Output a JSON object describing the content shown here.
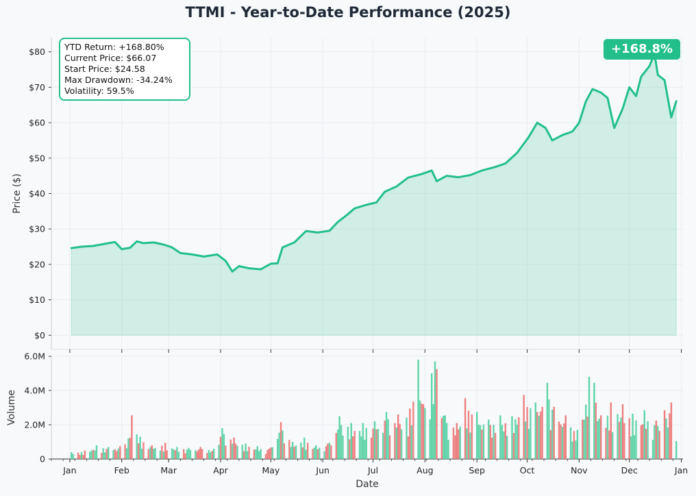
{
  "title": "TTMI - Year-to-Date Performance (2025)",
  "colors": {
    "line": "#22bf8a",
    "fill": "#22bf8a",
    "up": "#4fcf9f",
    "down": "#ec7070",
    "grid": "#e9edf1"
  },
  "stats": [
    "YTD Return: +168.80%",
    "Current Price: $66.07",
    "Start Price: $24.58",
    "Max Drawdown: -34.24%",
    "Volatility: 59.5%"
  ],
  "badge": "+168.8%",
  "chart_data": [
    {
      "type": "area",
      "title": "TTMI - Year-to-Date Performance (2025)",
      "ylabel": "Price ($)",
      "ylim": [
        -4,
        84
      ],
      "y_ticks": [
        "$0",
        "$10",
        "$20",
        "$30",
        "$40",
        "$50",
        "$60",
        "$70",
        "$80"
      ],
      "y_tick_values": [
        0,
        10,
        20,
        30,
        40,
        50,
        60,
        70,
        80
      ],
      "grid": true,
      "series": [
        {
          "points": [
            [
              "2025-01-02",
              24.6
            ],
            [
              "2025-01-08",
              25.0
            ],
            [
              "2025-01-15",
              25.2
            ],
            [
              "2025-01-22",
              25.8
            ],
            [
              "2025-01-28",
              26.3
            ],
            [
              "2025-02-01",
              24.3
            ],
            [
              "2025-02-06",
              24.7
            ],
            [
              "2025-02-10",
              26.5
            ],
            [
              "2025-02-14",
              26.0
            ],
            [
              "2025-02-20",
              26.2
            ],
            [
              "2025-02-26",
              25.6
            ],
            [
              "2025-03-03",
              24.8
            ],
            [
              "2025-03-08",
              23.2
            ],
            [
              "2025-03-15",
              22.8
            ],
            [
              "2025-03-22",
              22.2
            ],
            [
              "2025-03-30",
              22.8
            ],
            [
              "2025-04-04",
              21.0
            ],
            [
              "2025-04-08",
              18.0
            ],
            [
              "2025-04-12",
              19.5
            ],
            [
              "2025-04-18",
              18.9
            ],
            [
              "2025-04-25",
              18.6
            ],
            [
              "2025-05-01",
              20.2
            ],
            [
              "2025-05-05",
              20.3
            ],
            [
              "2025-05-08",
              24.8
            ],
            [
              "2025-05-15",
              26.2
            ],
            [
              "2025-05-22",
              29.4
            ],
            [
              "2025-05-29",
              29.0
            ],
            [
              "2025-06-05",
              29.5
            ],
            [
              "2025-06-10",
              32.0
            ],
            [
              "2025-06-15",
              33.8
            ],
            [
              "2025-06-20",
              35.8
            ],
            [
              "2025-06-27",
              36.8
            ],
            [
              "2025-07-03",
              37.5
            ],
            [
              "2025-07-08",
              40.5
            ],
            [
              "2025-07-15",
              42.0
            ],
            [
              "2025-07-22",
              44.5
            ],
            [
              "2025-07-30",
              45.5
            ],
            [
              "2025-08-05",
              46.5
            ],
            [
              "2025-08-08",
              43.5
            ],
            [
              "2025-08-14",
              45.0
            ],
            [
              "2025-08-21",
              44.6
            ],
            [
              "2025-08-28",
              45.2
            ],
            [
              "2025-09-04",
              46.5
            ],
            [
              "2025-09-12",
              47.5
            ],
            [
              "2025-09-18",
              48.5
            ],
            [
              "2025-09-25",
              51.5
            ],
            [
              "2025-10-02",
              56.0
            ],
            [
              "2025-10-07",
              60.0
            ],
            [
              "2025-10-12",
              58.5
            ],
            [
              "2025-10-16",
              55.0
            ],
            [
              "2025-10-22",
              56.5
            ],
            [
              "2025-10-28",
              57.5
            ],
            [
              "2025-11-01",
              60.0
            ],
            [
              "2025-11-05",
              66.0
            ],
            [
              "2025-11-09",
              69.5
            ],
            [
              "2025-11-14",
              68.5
            ],
            [
              "2025-11-18",
              67.0
            ],
            [
              "2025-11-22",
              58.5
            ],
            [
              "2025-11-27",
              64.0
            ],
            [
              "2025-12-01",
              70.0
            ],
            [
              "2025-12-05",
              67.5
            ],
            [
              "2025-12-08",
              73.0
            ],
            [
              "2025-12-13",
              76.0
            ],
            [
              "2025-12-16",
              79.5
            ],
            [
              "2025-12-18",
              73.5
            ],
            [
              "2025-12-22",
              72.0
            ],
            [
              "2025-12-26",
              61.5
            ],
            [
              "2025-12-29",
              66.07
            ]
          ]
        }
      ],
      "annotations": [
        "YTD Return: +168.80%",
        "+168.8%"
      ]
    },
    {
      "type": "bar",
      "xlabel": "Date",
      "ylabel": "Volume",
      "ylim": [
        0,
        6000000
      ],
      "y_ticks": [
        "0",
        "2.0M",
        "4.0M",
        "6.0M"
      ],
      "y_tick_values": [
        0,
        2000000,
        4000000,
        6000000
      ],
      "x_ticks": [
        "Jan",
        "Feb",
        "Mar",
        "Apr",
        "May",
        "Jun",
        "Jul",
        "Aug",
        "Sep",
        "Oct",
        "Nov",
        "Dec",
        "Jan"
      ],
      "x_tick_dates": [
        "2025-01-01",
        "2025-02-01",
        "2025-03-01",
        "2025-04-01",
        "2025-05-01",
        "2025-06-01",
        "2025-07-01",
        "2025-08-01",
        "2025-09-01",
        "2025-10-01",
        "2025-11-01",
        "2025-12-01",
        "2026-01-01"
      ],
      "xlim": [
        "2024-12-21",
        "2026-01-02"
      ],
      "series": [
        {
          "name": "",
          "note": "daily volume in shares, colored by up (green) / down (red) day",
          "points": [
            [
              "2025-01-02",
              400000,
              "up"
            ],
            [
              "2025-01-10",
              500000,
              "down"
            ],
            [
              "2025-01-17",
              800000,
              "up"
            ],
            [
              "2025-01-24",
              700000,
              "up"
            ],
            [
              "2025-01-31",
              750000,
              "down"
            ],
            [
              "2025-02-05",
              1200000,
              "up"
            ],
            [
              "2025-02-07",
              2550000,
              "down"
            ],
            [
              "2025-02-12",
              1300000,
              "up"
            ],
            [
              "2025-02-19",
              800000,
              "down"
            ],
            [
              "2025-02-27",
              950000,
              "down"
            ],
            [
              "2025-03-06",
              700000,
              "up"
            ],
            [
              "2025-03-13",
              650000,
              "up"
            ],
            [
              "2025-03-20",
              700000,
              "down"
            ],
            [
              "2025-03-28",
              600000,
              "up"
            ],
            [
              "2025-04-02",
              1800000,
              "up"
            ],
            [
              "2025-04-09",
              1250000,
              "down"
            ],
            [
              "2025-04-16",
              900000,
              "up"
            ],
            [
              "2025-04-23",
              750000,
              "up"
            ],
            [
              "2025-04-30",
              600000,
              "down"
            ],
            [
              "2025-05-07",
              2150000,
              "down"
            ],
            [
              "2025-05-14",
              1000000,
              "up"
            ],
            [
              "2025-05-21",
              1250000,
              "up"
            ],
            [
              "2025-05-28",
              800000,
              "up"
            ],
            [
              "2025-06-04",
              900000,
              "down"
            ],
            [
              "2025-06-11",
              2500000,
              "up"
            ],
            [
              "2025-06-18",
              2100000,
              "up"
            ],
            [
              "2025-06-25",
              2100000,
              "up"
            ],
            [
              "2025-07-02",
              2200000,
              "up"
            ],
            [
              "2025-07-09",
              2750000,
              "up"
            ],
            [
              "2025-07-16",
              2600000,
              "down"
            ],
            [
              "2025-07-23",
              2950000,
              "down"
            ],
            [
              "2025-07-28",
              5800000,
              "up"
            ],
            [
              "2025-07-31",
              3200000,
              "down"
            ],
            [
              "2025-08-05",
              5000000,
              "up"
            ],
            [
              "2025-08-07",
              5700000,
              "up"
            ],
            [
              "2025-08-08",
              5250000,
              "down"
            ],
            [
              "2025-08-13",
              2550000,
              "up"
            ],
            [
              "2025-08-20",
              2100000,
              "down"
            ],
            [
              "2025-08-25",
              3550000,
              "down"
            ],
            [
              "2025-09-01",
              2750000,
              "up"
            ],
            [
              "2025-09-08",
              2300000,
              "up"
            ],
            [
              "2025-09-15",
              2550000,
              "up"
            ],
            [
              "2025-09-22",
              2500000,
              "up"
            ],
            [
              "2025-09-29",
              3750000,
              "down"
            ],
            [
              "2025-10-06",
              3300000,
              "up"
            ],
            [
              "2025-10-13",
              4450000,
              "up"
            ],
            [
              "2025-10-17",
              3050000,
              "down"
            ],
            [
              "2025-10-24",
              2550000,
              "down"
            ],
            [
              "2025-10-31",
              1700000,
              "up"
            ],
            [
              "2025-11-07",
              4800000,
              "up"
            ],
            [
              "2025-11-10",
              4450000,
              "up"
            ],
            [
              "2025-11-14",
              2550000,
              "down"
            ],
            [
              "2025-11-20",
              3300000,
              "down"
            ],
            [
              "2025-11-27",
              3200000,
              "down"
            ],
            [
              "2025-12-03",
              2650000,
              "up"
            ],
            [
              "2025-12-10",
              2850000,
              "up"
            ],
            [
              "2025-12-17",
              2250000,
              "down"
            ],
            [
              "2025-12-22",
              2850000,
              "down"
            ],
            [
              "2025-12-26",
              3300000,
              "down"
            ],
            [
              "2025-12-29",
              1050000,
              "up"
            ]
          ]
        }
      ]
    }
  ]
}
